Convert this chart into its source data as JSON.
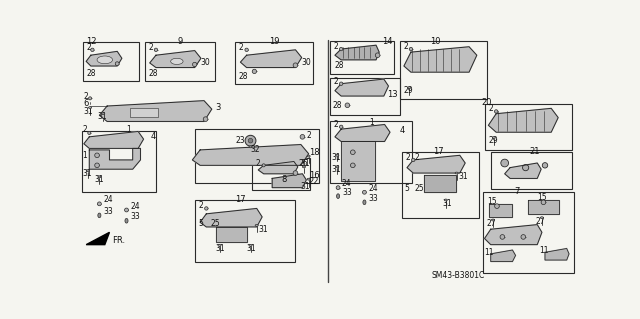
{
  "bg_color": "#f5f5f0",
  "line_color": "#2a2a2a",
  "text_color": "#111111",
  "fig_width": 6.4,
  "fig_height": 3.19,
  "diagram_code": "SM43-B3801C"
}
